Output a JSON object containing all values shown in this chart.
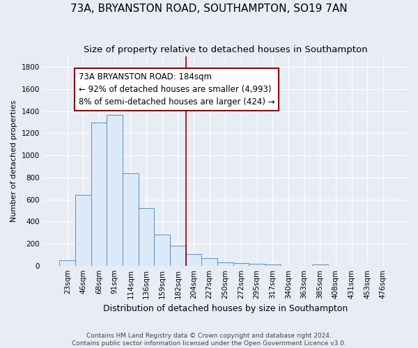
{
  "title": "73A, BRYANSTON ROAD, SOUTHAMPTON, SO19 7AN",
  "subtitle": "Size of property relative to detached houses in Southampton",
  "xlabel": "Distribution of detached houses by size in Southampton",
  "ylabel": "Number of detached properties",
  "footer_line1": "Contains HM Land Registry data © Crown copyright and database right 2024.",
  "footer_line2": "Contains public sector information licensed under the Open Government Licence v3.0.",
  "bar_labels": [
    "23sqm",
    "46sqm",
    "68sqm",
    "91sqm",
    "114sqm",
    "136sqm",
    "159sqm",
    "182sqm",
    "204sqm",
    "227sqm",
    "250sqm",
    "272sqm",
    "295sqm",
    "317sqm",
    "340sqm",
    "363sqm",
    "385sqm",
    "408sqm",
    "431sqm",
    "453sqm",
    "476sqm"
  ],
  "bar_values": [
    50,
    640,
    1300,
    1370,
    840,
    520,
    280,
    180,
    105,
    65,
    30,
    25,
    15,
    10,
    0,
    0,
    10,
    0,
    0,
    0,
    0
  ],
  "bar_color": "#dce9f8",
  "bar_edge_color": "#5b8ec4",
  "vline_x": 7.5,
  "vline_color": "#8b0000",
  "annotation_line1": "73A BRYANSTON ROAD: 184sqm",
  "annotation_line2": "← 92% of detached houses are smaller (4,993)",
  "annotation_line3": "8% of semi-detached houses are larger (424) →",
  "annotation_box_facecolor": "#ffffff",
  "annotation_box_edgecolor": "#8b0000",
  "ylim": [
    0,
    1900
  ],
  "yticks": [
    0,
    200,
    400,
    600,
    800,
    1000,
    1200,
    1400,
    1600,
    1800
  ],
  "bg_color": "#e8edf5",
  "grid_color": "#ffffff",
  "title_fontsize": 11,
  "subtitle_fontsize": 9.5,
  "xlabel_fontsize": 9,
  "ylabel_fontsize": 8,
  "tick_fontsize": 7.5,
  "annotation_fontsize": 8.5,
  "footer_fontsize": 6.5
}
